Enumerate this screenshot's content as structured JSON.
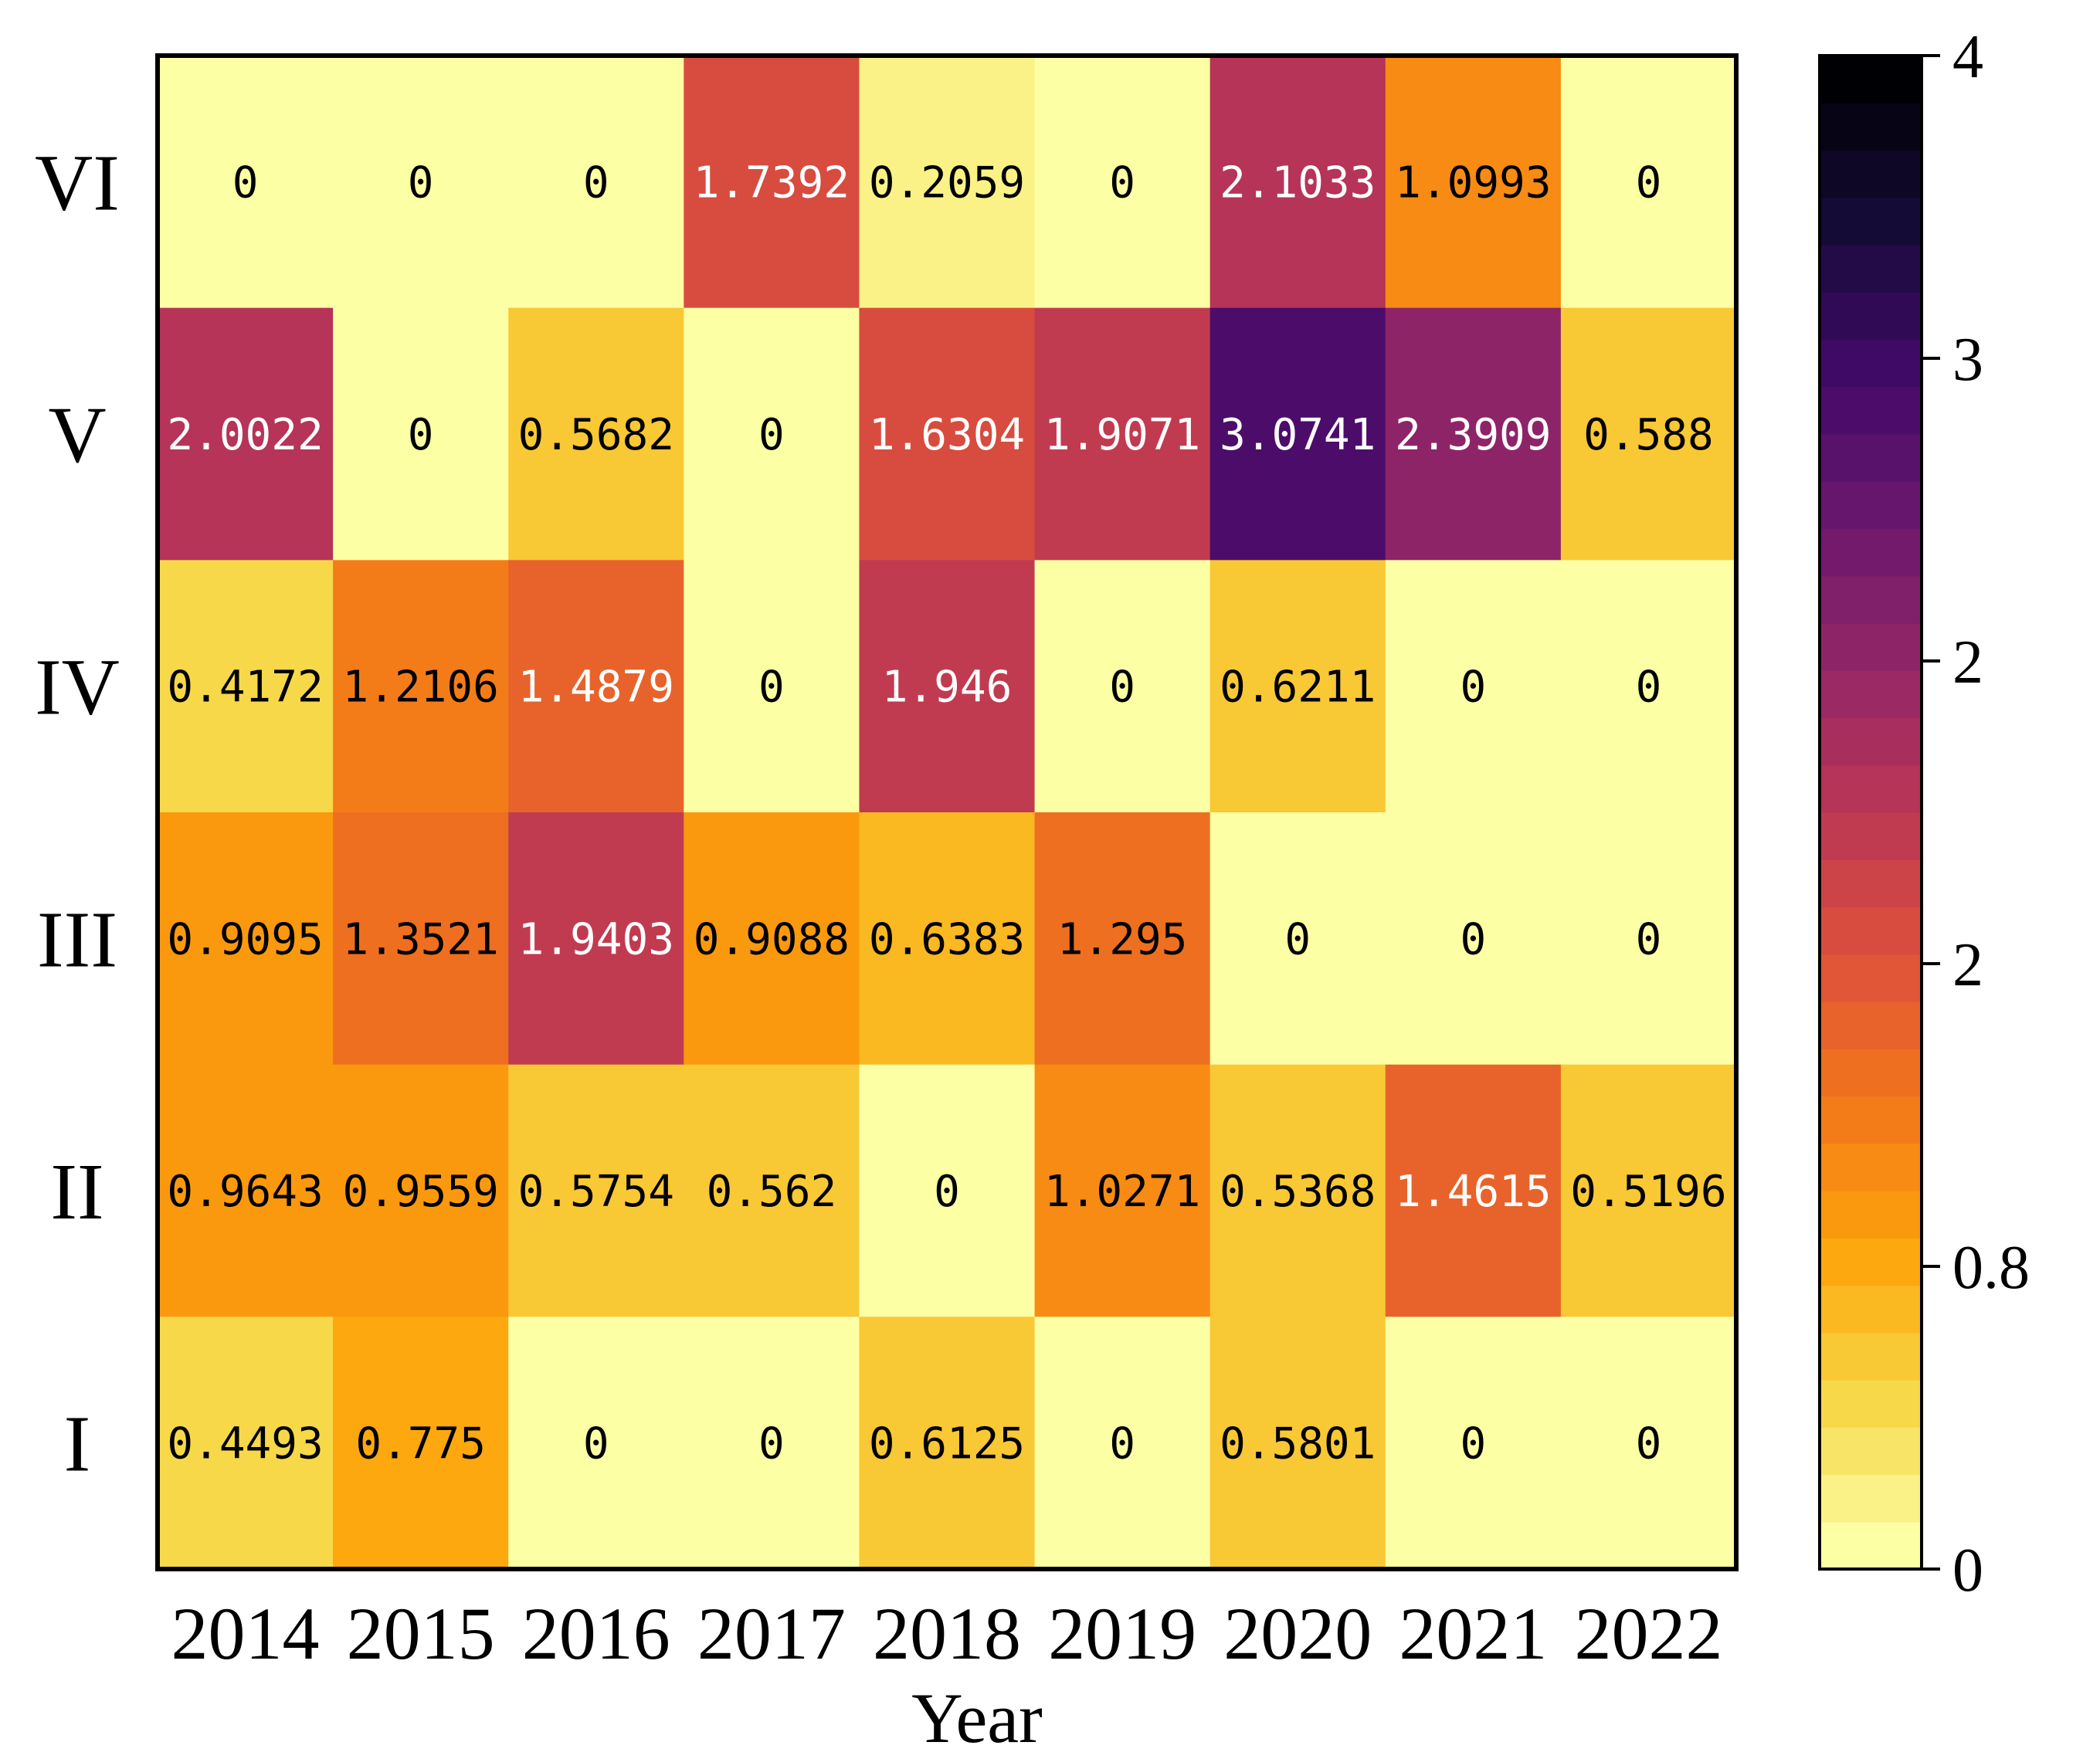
{
  "chart_data": {
    "type": "heatmap",
    "title": "",
    "xlabel": "Year",
    "ylabel": "",
    "x_categories": [
      "2014",
      "2015",
      "2016",
      "2017",
      "2018",
      "2019",
      "2020",
      "2021",
      "2022"
    ],
    "y_categories": [
      "VI",
      "V",
      "IV",
      "III",
      "II",
      "I"
    ],
    "values": [
      [
        0,
        0,
        0,
        1.7392,
        0.2059,
        0,
        2.1033,
        1.0993,
        0
      ],
      [
        2.0022,
        0,
        0.5682,
        0,
        1.6304,
        1.9071,
        3.0741,
        2.3909,
        0.588
      ],
      [
        0.4172,
        1.2106,
        1.4879,
        0,
        1.946,
        0,
        0.6211,
        0,
        0
      ],
      [
        0.9095,
        1.3521,
        1.9403,
        0.9088,
        0.6383,
        1.295,
        0,
        0,
        0
      ],
      [
        0.9643,
        0.9559,
        0.5754,
        0.562,
        0,
        1.0271,
        0.5368,
        1.4615,
        0.5196
      ],
      [
        0.4493,
        0.775,
        0,
        0,
        0.6125,
        0,
        0.5801,
        0,
        0
      ]
    ],
    "cell_labels": [
      [
        "0",
        "0",
        "0",
        "1.7392",
        "0.2059",
        "0",
        "2.1033",
        "1.0993",
        "0"
      ],
      [
        "2.0022",
        "0",
        "0.5682",
        "0",
        "1.6304",
        "1.9071",
        "3.0741",
        "2.3909",
        "0.588"
      ],
      [
        "0.4172",
        "1.2106",
        "1.4879",
        "0",
        "1.946",
        "0",
        "0.6211",
        "0",
        "0"
      ],
      [
        "0.9095",
        "1.3521",
        "1.9403",
        "0.9088",
        "0.6383",
        "1.295",
        "0",
        "0",
        "0"
      ],
      [
        "0.9643",
        "0.9559",
        "0.5754",
        "0.562",
        "0",
        "1.0271",
        "0.5368",
        "1.4615",
        "0.5196"
      ],
      [
        "0.4493",
        "0.775",
        "0",
        "0",
        "0.6125",
        "0",
        "0.5801",
        "0",
        "0"
      ]
    ],
    "colorbar": {
      "tick_labels": [
        "0",
        "0.8",
        "2",
        "2",
        "3",
        "4"
      ],
      "ticks": [
        0,
        0.8,
        1.6,
        2.4,
        3.2,
        4.0
      ],
      "range": [
        0,
        4
      ]
    },
    "colormap": "inferno_r",
    "colors": {
      "stops": [
        "#fcffa4",
        "#f6d746",
        "#fca50a",
        "#f37819",
        "#dd513a",
        "#bc3754",
        "#932667",
        "#6a176e",
        "#420a68",
        "#160b39",
        "#000004"
      ],
      "dark_text": "#000000",
      "light_text": "#ffffff"
    }
  }
}
